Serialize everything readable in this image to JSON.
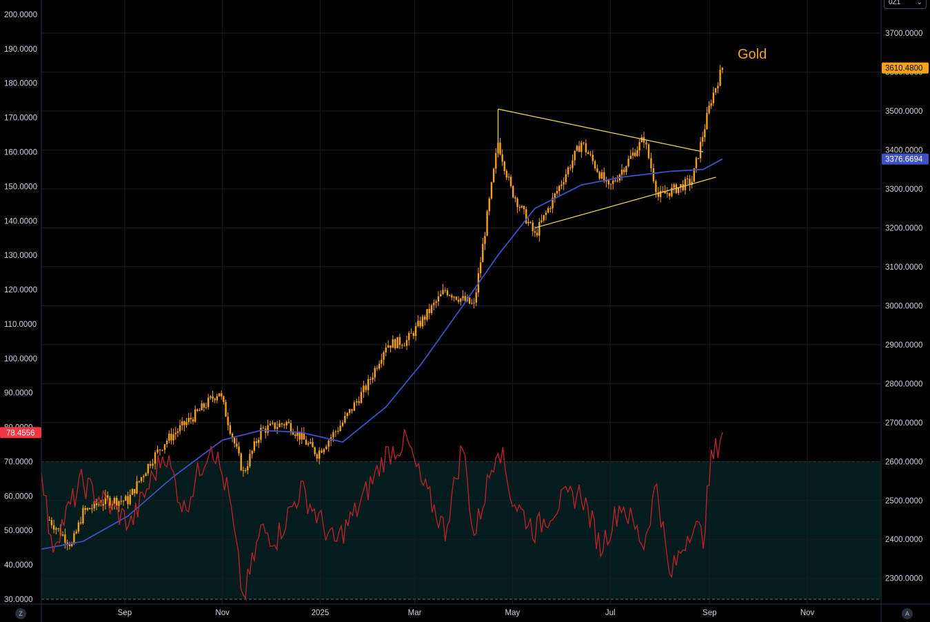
{
  "chart_data": {
    "type": "line",
    "title": "Gold",
    "x_ticks": [
      "Sep",
      "Nov",
      "2025",
      "Mar",
      "May",
      "Jul",
      "Sep",
      "Nov"
    ],
    "left_axis": {
      "ticks": [
        "200.0000",
        "190.0000",
        "180.0000",
        "170.0000",
        "160.0000",
        "150.0000",
        "140.0000",
        "130.0000",
        "120.0000",
        "110.0000",
        "100.0000",
        "90.0000",
        "80.0000",
        "70.0000",
        "60.0000",
        "50.0000",
        "40.0000",
        "30.0000"
      ],
      "range": [
        28.6,
        204.2
      ]
    },
    "right_axis": {
      "ticks": [
        "3700.0000",
        "3600.0000",
        "3500.0000",
        "3400.0000",
        "3300.0000",
        "3200.0000",
        "3100.0000",
        "3000.0000",
        "2900.0000",
        "2800.0000",
        "2700.0000",
        "2600.0000",
        "2500.0000",
        "2400.0000",
        "2300.0000"
      ],
      "range": [
        2234,
        3785
      ]
    },
    "rsi_band": {
      "upper": 70,
      "lower": 30,
      "color": "#041c1c"
    },
    "series": [
      {
        "name": "Gold",
        "kind": "candles",
        "axis": "right",
        "color": "#f7a21b",
        "x": [
          "2024-07-16",
          "2024-07-30",
          "2024-08-06",
          "2024-08-20",
          "2024-09-03",
          "2024-09-17",
          "2024-09-26",
          "2024-10-15",
          "2024-10-30",
          "2024-11-14",
          "2024-11-25",
          "2024-12-11",
          "2024-12-30",
          "2025-01-15",
          "2025-01-31",
          "2025-02-11",
          "2025-02-24",
          "2025-03-20",
          "2025-04-07",
          "2025-04-22",
          "2025-04-30",
          "2025-05-15",
          "2025-06-13",
          "2025-06-30",
          "2025-07-22",
          "2025-07-31",
          "2025-08-21",
          "2025-09-02",
          "2025-09-09"
        ],
        "y": [
          2450,
          2385,
          2470,
          2500,
          2500,
          2600,
          2650,
          2720,
          2780,
          2570,
          2680,
          2700,
          2620,
          2700,
          2800,
          2900,
          2910,
          3040,
          3000,
          3420,
          3300,
          3180,
          3420,
          3300,
          3430,
          3280,
          3320,
          3530,
          3610.48
        ]
      },
      {
        "name": "",
        "kind": "moving-average",
        "axis": "right",
        "color": "#3f51c7",
        "x": [
          "2024-07-11",
          "2024-08-06",
          "2024-09-03",
          "2024-10-01",
          "2024-11-01",
          "2024-11-25",
          "2024-12-20",
          "2025-01-15",
          "2025-02-11",
          "2025-03-05",
          "2025-03-31",
          "2025-04-22",
          "2025-05-15",
          "2025-06-13",
          "2025-07-08",
          "2025-08-07",
          "2025-08-28",
          "2025-09-09"
        ],
        "y": [
          2375,
          2395,
          2460,
          2560,
          2655,
          2680,
          2675,
          2650,
          2740,
          2850,
          3000,
          3130,
          3250,
          3310,
          3330,
          3345,
          3350,
          3376.6694
        ]
      },
      {
        "name": "",
        "kind": "rsi",
        "axis": "left",
        "color": "#b2232f",
        "x": [
          "2024-07-11",
          "2024-07-17",
          "2024-08-05",
          "2024-08-20",
          "2024-09-05",
          "2024-09-26",
          "2024-10-08",
          "2024-10-25",
          "2024-11-05",
          "2024-11-14",
          "2024-11-25",
          "2024-12-05",
          "2024-12-20",
          "2025-01-10",
          "2025-01-24",
          "2025-02-11",
          "2025-02-24",
          "2025-03-05",
          "2025-03-20",
          "2025-03-31",
          "2025-04-07",
          "2025-04-22",
          "2025-05-01",
          "2025-05-15",
          "2025-05-30",
          "2025-06-13",
          "2025-06-25",
          "2025-07-08",
          "2025-07-22",
          "2025-07-30",
          "2025-08-07",
          "2025-08-21",
          "2025-08-28",
          "2025-09-02",
          "2025-09-09"
        ],
        "y": [
          70,
          45,
          64,
          58,
          52,
          73,
          56,
          76,
          60,
          30,
          50,
          48,
          62,
          46,
          56,
          72,
          76,
          64,
          50,
          75,
          48,
          76,
          59,
          50,
          58,
          61,
          45,
          58,
          46,
          64,
          36,
          52,
          48,
          70,
          78.4556
        ]
      }
    ],
    "annotations": {
      "triangle_upper": {
        "from": [
          "2025-04-22",
          3505
        ],
        "to": [
          "2025-08-28",
          3395
        ]
      },
      "triangle_lower": {
        "from": [
          "2025-05-15",
          3200
        ],
        "to": [
          "2025-09-05",
          3330
        ]
      },
      "triangle_apex_line": {
        "from": [
          "2025-04-22",
          3505
        ],
        "to": [
          "2025-04-22",
          3420
        ]
      },
      "line_color": "#f5e04a"
    }
  },
  "price_tags": {
    "gold_last": {
      "text": "3610.4800",
      "value": 3610.48,
      "axis": "right",
      "bg": "#f7a21b",
      "fg": "#000000"
    },
    "ma_last": {
      "text": "3376.6694",
      "value": 3376.6694,
      "axis": "right",
      "bg": "#3f51c7",
      "fg": "#ffffff"
    },
    "rsi_last": {
      "text": "78.4556",
      "value": 78.4556,
      "axis": "left",
      "bg": "#f23645",
      "fg": "#ffffff"
    }
  },
  "controls": {
    "timeframe": "0Z1",
    "left_corner": "Z",
    "right_corner": "A"
  },
  "colors": {
    "background": "#000000",
    "grid": "#1a1d24",
    "axis_text": "#d1d4dc"
  }
}
